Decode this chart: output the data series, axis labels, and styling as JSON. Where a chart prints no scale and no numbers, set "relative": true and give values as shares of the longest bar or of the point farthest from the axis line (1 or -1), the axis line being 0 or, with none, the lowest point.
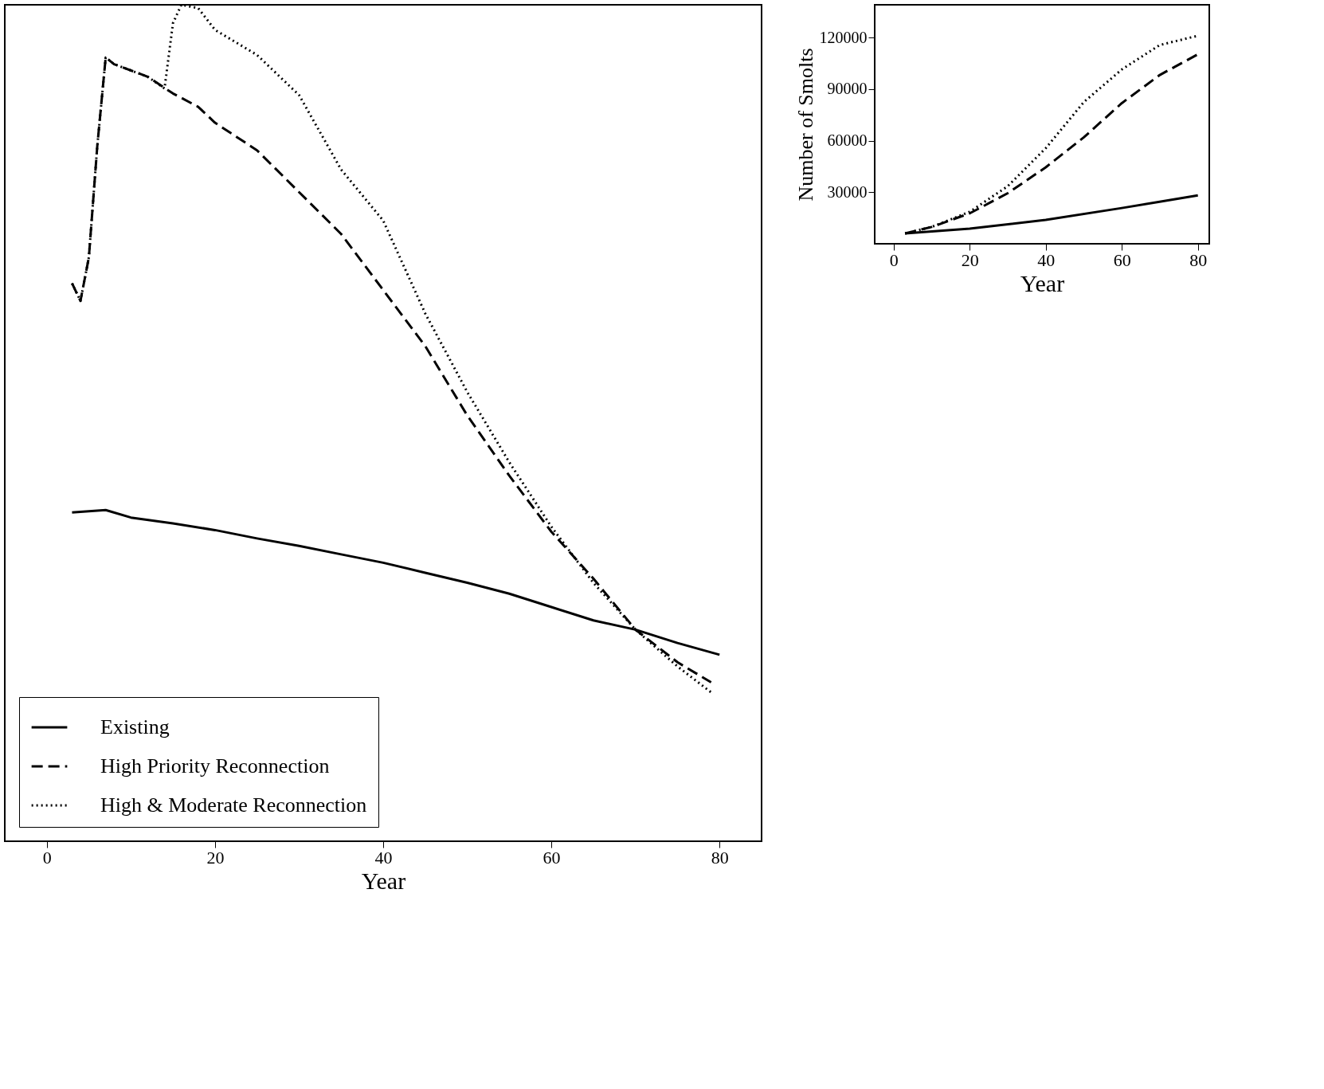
{
  "chart_data": [
    {
      "type": "line",
      "relative": true,
      "xlabel": "Year",
      "xlim": [
        -5,
        85
      ],
      "xticks": [
        0,
        20,
        40,
        60,
        80
      ],
      "legend": "bottom left",
      "grid": false,
      "series": [
        {
          "name": "Existing",
          "color": "#000000",
          "line_style": "solid",
          "x": [
            3,
            7,
            10,
            15,
            20,
            25,
            30,
            35,
            40,
            45,
            50,
            55,
            60,
            65,
            70,
            75,
            80
          ],
          "values": [
            0.393,
            0.396,
            0.387,
            0.38,
            0.372,
            0.362,
            0.353,
            0.343,
            0.333,
            0.321,
            0.309,
            0.296,
            0.28,
            0.264,
            0.253,
            0.237,
            0.223
          ]
        },
        {
          "name": "High Priority Reconnection",
          "color": "#000000",
          "line_style": "dashed",
          "x": [
            3,
            4,
            5,
            6,
            7,
            8,
            12,
            15,
            18,
            20,
            25,
            30,
            35,
            40,
            45,
            50,
            55,
            60,
            65,
            70,
            75,
            79
          ],
          "values": [
            0.667,
            0.646,
            0.698,
            0.831,
            0.937,
            0.929,
            0.914,
            0.894,
            0.878,
            0.859,
            0.826,
            0.776,
            0.726,
            0.659,
            0.592,
            0.509,
            0.437,
            0.37,
            0.314,
            0.253,
            0.214,
            0.19
          ]
        },
        {
          "name": "High & Moderate Reconnection",
          "color": "#000000",
          "line_style": "dotted",
          "x": [
            3,
            4,
            5,
            6,
            7,
            8,
            12,
            14,
            15,
            16,
            18,
            20,
            25,
            30,
            35,
            40,
            45,
            50,
            55,
            60,
            65,
            70,
            75,
            79
          ],
          "values": [
            0.667,
            0.646,
            0.698,
            0.831,
            0.937,
            0.929,
            0.914,
            0.9,
            0.978,
            1.0,
            0.996,
            0.97,
            0.94,
            0.892,
            0.803,
            0.742,
            0.631,
            0.537,
            0.453,
            0.376,
            0.309,
            0.253,
            0.209,
            0.178
          ]
        }
      ]
    },
    {
      "type": "line",
      "xlabel": "Year",
      "ylabel": "Number of Smolts",
      "xlim": [
        -5,
        83
      ],
      "xticks": [
        0,
        20,
        40,
        60,
        80
      ],
      "ylim": [
        0,
        139000
      ],
      "yticks": [
        30000,
        60000,
        90000,
        120000
      ],
      "grid": false,
      "series": [
        {
          "color": "#000000",
          "line_style": "solid",
          "x": [
            3,
            20,
            40,
            60,
            80
          ],
          "values": [
            6000,
            8800,
            13900,
            20800,
            28100
          ]
        },
        {
          "color": "#000000",
          "line_style": "dashed",
          "x": [
            3,
            10,
            20,
            30,
            40,
            50,
            60,
            70,
            80
          ],
          "values": [
            6000,
            9800,
            17700,
            29400,
            44500,
            61900,
            81800,
            98200,
            110200
          ]
        },
        {
          "color": "#000000",
          "line_style": "dotted",
          "x": [
            3,
            10,
            20,
            30,
            40,
            50,
            60,
            70,
            80
          ],
          "values": [
            6000,
            9800,
            18600,
            33500,
            55600,
            82400,
            101400,
            115600,
            121000
          ]
        }
      ]
    }
  ]
}
